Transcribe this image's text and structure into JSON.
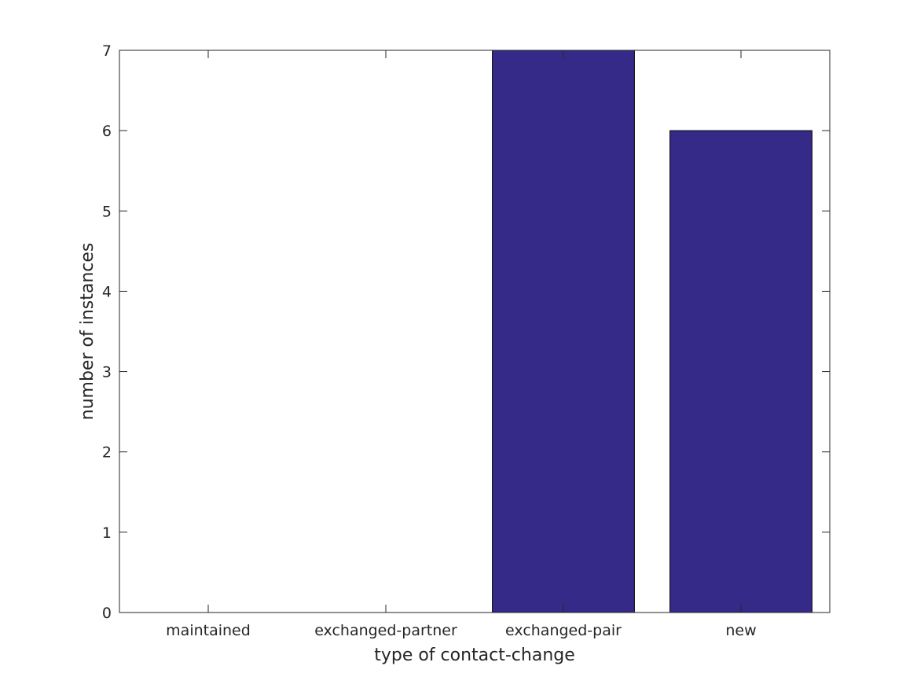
{
  "chart_data": {
    "type": "bar",
    "categories": [
      "maintained",
      "exchanged-partner",
      "exchanged-pair",
      "new"
    ],
    "values": [
      0,
      0,
      7,
      6
    ],
    "title": "",
    "xlabel": "type of contact-change",
    "ylabel": "number of instances",
    "ylim": [
      0,
      7
    ],
    "yticks": [
      "0",
      "1",
      "2",
      "3",
      "4",
      "5",
      "6",
      "7"
    ],
    "grid": false,
    "legend": "none",
    "bar_color": "#352a87",
    "bar_edge_color": "#000000"
  }
}
